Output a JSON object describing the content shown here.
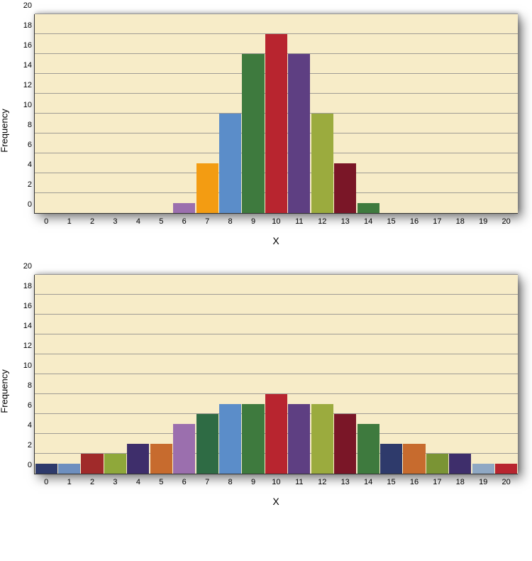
{
  "charts": [
    {
      "type": "bar",
      "ylabel": "Frequency",
      "xlabel": "X",
      "background_color": "#f7ecc8",
      "grid_color": "#888888",
      "ylim": [
        0,
        20
      ],
      "ytick_step": 2,
      "categories": [
        "0",
        "1",
        "2",
        "3",
        "4",
        "5",
        "6",
        "7",
        "8",
        "9",
        "10",
        "11",
        "12",
        "13",
        "14",
        "15",
        "16",
        "17",
        "18",
        "19",
        "20"
      ],
      "values": [
        0,
        0,
        0,
        0,
        0,
        0,
        1,
        5,
        10,
        16,
        18,
        16,
        10,
        5,
        1,
        0,
        0,
        0,
        0,
        0,
        0
      ],
      "bar_colors": [
        "#000000",
        "#000000",
        "#000000",
        "#000000",
        "#000000",
        "#000000",
        "#9b6fae",
        "#f39c12",
        "#5b8dc9",
        "#3e7a3e",
        "#b8252f",
        "#5e3f82",
        "#9bab3e",
        "#7a1627",
        "#3e7a3e",
        "#000000",
        "#000000",
        "#000000",
        "#000000",
        "#000000",
        "#000000"
      ],
      "bar_width": 0.96
    },
    {
      "type": "bar",
      "ylabel": "Frequency",
      "xlabel": "X",
      "background_color": "#f7ecc8",
      "grid_color": "#888888",
      "ylim": [
        0,
        20
      ],
      "ytick_step": 2,
      "categories": [
        "0",
        "1",
        "2",
        "3",
        "4",
        "5",
        "6",
        "7",
        "8",
        "9",
        "10",
        "11",
        "12",
        "13",
        "14",
        "15",
        "16",
        "17",
        "18",
        "19",
        "20"
      ],
      "values": [
        1,
        1,
        2,
        2,
        3,
        3,
        5,
        6,
        7,
        7,
        8,
        7,
        7,
        6,
        5,
        3,
        3,
        2,
        2,
        1,
        1
      ],
      "bar_colors": [
        "#2e3a6b",
        "#6d8fbf",
        "#a02a2a",
        "#8fa83a",
        "#3e2e6b",
        "#c76b2e",
        "#9b6fae",
        "#2e6b44",
        "#5b8dc9",
        "#3e7a3e",
        "#b8252f",
        "#5e3f82",
        "#9bab3e",
        "#7a1627",
        "#3e7a3e",
        "#2e3a6b",
        "#c76b2e",
        "#7a9434",
        "#3e2e6b",
        "#8fa8c4",
        "#b8252f"
      ],
      "bar_width": 0.96
    }
  ]
}
